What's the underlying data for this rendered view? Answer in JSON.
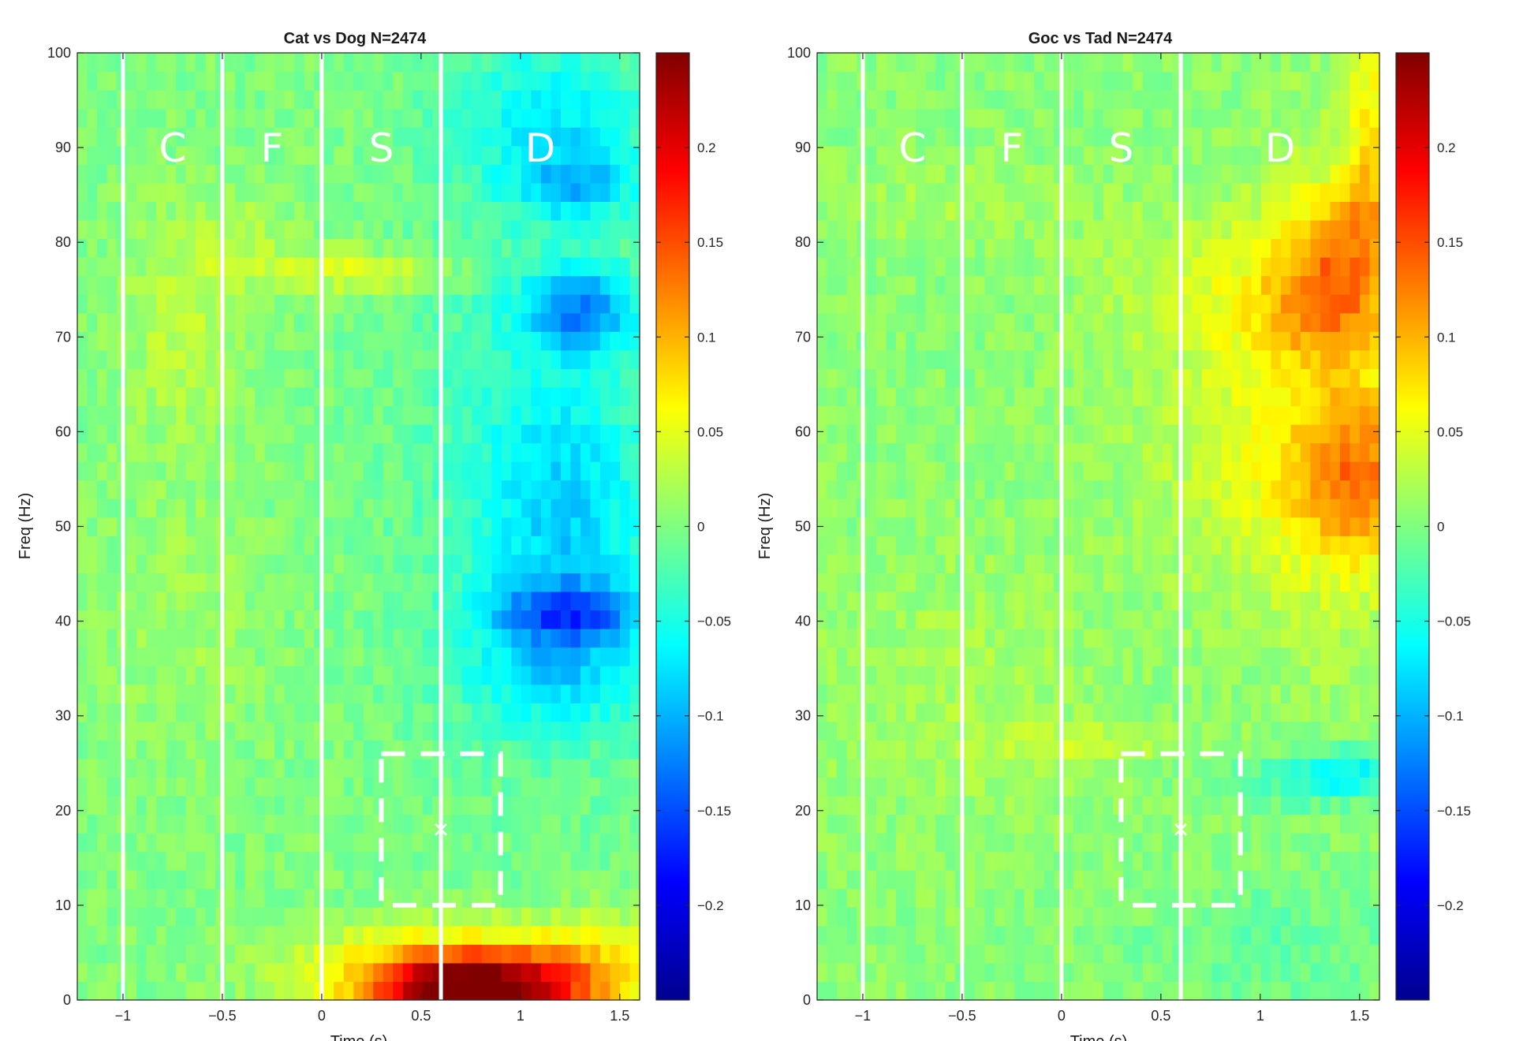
{
  "chart_data": [
    {
      "type": "heatmap",
      "title": "Cat vs Dog N=2474",
      "xlabel": "Time (s)",
      "ylabel": "Freq (Hz)",
      "xlim": [
        -1.23,
        1.6
      ],
      "ylim": [
        0,
        100
      ],
      "xticks": [
        -1,
        -0.5,
        0,
        0.5,
        1,
        1.5
      ],
      "xtick_labels": [
        "−1",
        "−0.5",
        "0",
        "0.5",
        "1",
        "1.5"
      ],
      "yticks": [
        0,
        10,
        20,
        30,
        40,
        50,
        60,
        70,
        80,
        90,
        100
      ],
      "ytick_labels": [
        "0",
        "10",
        "20",
        "30",
        "40",
        "50",
        "60",
        "70",
        "80",
        "90",
        "100"
      ],
      "colormap": "jet",
      "clim": [
        -0.25,
        0.25
      ],
      "colorbar_ticks": [
        0.2,
        0.15,
        0.1,
        0.05,
        0,
        -0.05,
        -0.1,
        -0.15,
        -0.2
      ],
      "colorbar_tick_labels": [
        "0.2",
        "0.15",
        "0.1",
        "0.05",
        "0",
        "−0.05",
        "−0.1",
        "−0.15",
        "−0.2"
      ],
      "phase_boundaries": [
        -1,
        -0.5,
        0,
        0.6
      ],
      "phase_labels": [
        "C",
        "F",
        "S",
        "D"
      ],
      "phase_label_x": [
        -0.75,
        -0.25,
        0.3,
        1.1
      ],
      "phase_label_y": 90,
      "roi_box": {
        "x": [
          0.3,
          0.9
        ],
        "y": [
          10,
          26
        ]
      },
      "roi_marker": {
        "x": 0.6,
        "y": 18
      },
      "features": {
        "base": 0.0,
        "blobs": [
          {
            "x": 0.62,
            "y": 1,
            "sx": 0.32,
            "sy": 2.5,
            "v": 0.17
          },
          {
            "x": 0.95,
            "y": 1,
            "sx": 0.3,
            "sy": 2.5,
            "v": 0.12
          },
          {
            "x": 0.6,
            "y": 4,
            "sx": 0.55,
            "sy": 3,
            "v": 0.07
          },
          {
            "x": 1.35,
            "y": 3,
            "sx": 0.3,
            "sy": 4,
            "v": 0.06
          },
          {
            "x": 1.3,
            "y": 73,
            "sx": 0.2,
            "sy": 3,
            "v": -0.1
          },
          {
            "x": 1.2,
            "y": 93,
            "sx": 0.35,
            "sy": 6,
            "v": -0.06
          },
          {
            "x": 1.25,
            "y": 50,
            "sx": 0.3,
            "sy": 12,
            "v": -0.06
          },
          {
            "x": 1.25,
            "y": 41,
            "sx": 0.25,
            "sy": 2,
            "v": -0.08
          },
          {
            "x": 1.2,
            "y": 36,
            "sx": 0.35,
            "sy": 5,
            "v": -0.05
          },
          {
            "x": 1.3,
            "y": 86,
            "sx": 0.2,
            "sy": 2.5,
            "v": -0.06
          },
          {
            "x": 1.0,
            "y": 60,
            "sx": 0.45,
            "sy": 25,
            "v": -0.03
          },
          {
            "x": 0.25,
            "y": 77,
            "sx": 0.35,
            "sy": 1.5,
            "v": 0.05
          },
          {
            "x": -0.7,
            "y": 70,
            "sx": 0.2,
            "sy": 8,
            "v": 0.03
          },
          {
            "x": -0.4,
            "y": 80,
            "sx": 0.25,
            "sy": 4,
            "v": 0.02
          },
          {
            "x": -0.7,
            "y": 40,
            "sx": 0.3,
            "sy": 10,
            "v": 0.015
          }
        ]
      }
    },
    {
      "type": "heatmap",
      "title": "Goc vs Tad N=2474",
      "xlabel": "Time (s)",
      "ylabel": "Freq (Hz)",
      "xlim": [
        -1.23,
        1.6
      ],
      "ylim": [
        0,
        100
      ],
      "xticks": [
        -1,
        -0.5,
        0,
        0.5,
        1,
        1.5
      ],
      "xtick_labels": [
        "−1",
        "−0.5",
        "0",
        "0.5",
        "1",
        "1.5"
      ],
      "yticks": [
        0,
        10,
        20,
        30,
        40,
        50,
        60,
        70,
        80,
        90,
        100
      ],
      "ytick_labels": [
        "0",
        "10",
        "20",
        "30",
        "40",
        "50",
        "60",
        "70",
        "80",
        "90",
        "100"
      ],
      "colormap": "jet",
      "clim": [
        -0.25,
        0.25
      ],
      "colorbar_ticks": [
        0.2,
        0.15,
        0.1,
        0.05,
        0,
        -0.05,
        -0.1,
        -0.15,
        -0.2
      ],
      "colorbar_tick_labels": [
        "0.2",
        "0.15",
        "0.1",
        "0.05",
        "0",
        "−0.05",
        "−0.1",
        "−0.15",
        "−0.2"
      ],
      "phase_boundaries": [
        -1,
        -0.5,
        0,
        0.6
      ],
      "phase_labels": [
        "C",
        "F",
        "S",
        "D"
      ],
      "phase_label_x": [
        -0.75,
        -0.25,
        0.3,
        1.1
      ],
      "phase_label_y": 90,
      "roi_box": {
        "x": [
          0.3,
          0.9
        ],
        "y": [
          10,
          26
        ]
      },
      "roi_marker": {
        "x": 0.6,
        "y": 18
      },
      "features": {
        "base": 0.005,
        "blobs": [
          {
            "x": 1.5,
            "y": 55,
            "sx": 0.2,
            "sy": 6,
            "v": 0.08
          },
          {
            "x": 1.35,
            "y": 74,
            "sx": 0.2,
            "sy": 4,
            "v": 0.07
          },
          {
            "x": 1.45,
            "y": 82,
            "sx": 0.18,
            "sy": 4,
            "v": 0.06
          },
          {
            "x": 1.55,
            "y": 92,
            "sx": 0.08,
            "sy": 8,
            "v": 0.06
          },
          {
            "x": 1.1,
            "y": 57,
            "sx": 0.45,
            "sy": 10,
            "v": 0.04
          },
          {
            "x": 1.0,
            "y": 75,
            "sx": 0.5,
            "sy": 6,
            "v": 0.04
          },
          {
            "x": 1.4,
            "y": 65,
            "sx": 0.3,
            "sy": 20,
            "v": 0.03
          },
          {
            "x": 1.45,
            "y": 24,
            "sx": 0.18,
            "sy": 1.8,
            "v": -0.06
          },
          {
            "x": 1.2,
            "y": 23,
            "sx": 0.3,
            "sy": 2.0,
            "v": -0.03
          },
          {
            "x": 1.1,
            "y": 6,
            "sx": 0.5,
            "sy": 5,
            "v": -0.02
          },
          {
            "x": 0.1,
            "y": 27,
            "sx": 0.3,
            "sy": 1.5,
            "v": 0.03
          },
          {
            "x": -0.5,
            "y": 33,
            "sx": 0.5,
            "sy": 10,
            "v": 0.015
          },
          {
            "x": -0.5,
            "y": 84,
            "sx": 0.4,
            "sy": 3,
            "v": 0.015
          }
        ]
      }
    }
  ]
}
